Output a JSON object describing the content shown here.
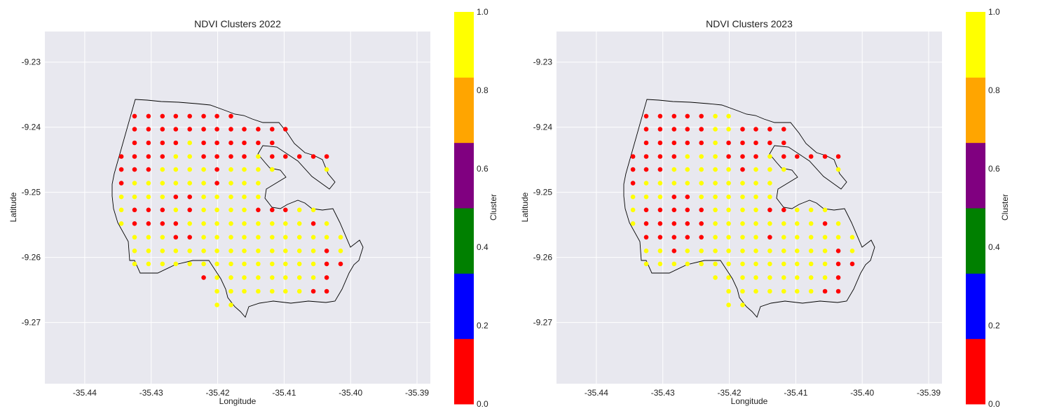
{
  "colors": {
    "background": "#e8e8ef",
    "grid": "#ffffff",
    "outline": "#000000",
    "cluster_red": "#ff0000",
    "cluster_yellow": "#ffff00"
  },
  "colorbar": {
    "label": "Cluster",
    "ticks": [
      "0.0",
      "0.2",
      "0.4",
      "0.6",
      "0.8",
      "1.0"
    ],
    "bands": [
      "#ff0000",
      "#0000ff",
      "#008000",
      "#800080",
      "#ffa500",
      "#ffff00"
    ]
  },
  "chart_data": [
    {
      "type": "scatter",
      "title": "NDVI Clusters 2022",
      "xlabel": "Longitude",
      "ylabel": "Latitude",
      "xlim": [
        -35.446,
        -35.388
      ],
      "ylim": [
        -9.2794,
        -9.2253
      ],
      "xticks": [
        "-35.44",
        "-35.43",
        "-35.42",
        "-35.41",
        "-35.40",
        "-35.39"
      ],
      "xtick_values": [
        -35.44,
        -35.43,
        -35.42,
        -35.41,
        -35.4,
        -35.39
      ],
      "yticks": [
        "-9.23",
        "-9.24",
        "-9.25",
        "-9.26",
        "-9.27"
      ],
      "ytick_values": [
        -9.23,
        -9.24,
        -9.25,
        -9.26,
        -9.27
      ],
      "grid": true,
      "x_grid": [
        -35.4345,
        -35.4325,
        -35.4304,
        -35.4283,
        -35.4263,
        -35.4242,
        -35.4221,
        -35.4201,
        -35.418,
        -35.416,
        -35.4139,
        -35.4118,
        -35.4098,
        -35.4077,
        -35.4056,
        -35.4036,
        -35.4015
      ],
      "y_grid": [
        -9.2383,
        -9.2403,
        -9.2424,
        -9.2445,
        -9.2465,
        -9.2486,
        -9.2507,
        -9.2527,
        -9.2548,
        -9.2569,
        -9.259,
        -9.261,
        -9.2631,
        -9.2652,
        -9.2673
      ],
      "point_rows": [
        ".RRRRRRRR........",
        ".RRRRRRRRRRRR....",
        ".RRRRYRRRRRR.....",
        "RRRRYYRRRRYRRRRR.",
        "RRRYYYYRYYYY...Y.",
        "RYYYYYYRYYY......",
        "YYYYRRYYYYY......",
        "YRRRYRYYYYRRRYY..",
        "YRRRRYYYYYYYYYRY.",
        ".YYYRRYYYYYYYYYYY",
        ".YYYYYYYYYYYYYYRY",
        ".YYYYYYYYYYYYYYRR",
        "......RYYYYYYYYR.",
        ".......YYYYYYYRR.",
        ".......YY........"
      ]
    },
    {
      "type": "scatter",
      "title": "NDVI Clusters 2023",
      "xlabel": "Longitude",
      "ylabel": "Latitude",
      "xlim": [
        -35.446,
        -35.388
      ],
      "ylim": [
        -9.2794,
        -9.2253
      ],
      "xticks": [
        "-35.44",
        "-35.43",
        "-35.42",
        "-35.41",
        "-35.40",
        "-35.39"
      ],
      "xtick_values": [
        -35.44,
        -35.43,
        -35.42,
        -35.41,
        -35.4,
        -35.39
      ],
      "yticks": [
        "-9.23",
        "-9.24",
        "-9.25",
        "-9.26",
        "-9.27"
      ],
      "ytick_values": [
        -9.23,
        -9.24,
        -9.25,
        -9.26,
        -9.27
      ],
      "grid": true,
      "x_grid": [
        -35.4345,
        -35.4325,
        -35.4304,
        -35.4283,
        -35.4263,
        -35.4242,
        -35.4221,
        -35.4201,
        -35.418,
        -35.416,
        -35.4139,
        -35.4118,
        -35.4098,
        -35.4077,
        -35.4056,
        -35.4036,
        -35.4015
      ],
      "y_grid": [
        -9.2383,
        -9.2403,
        -9.2424,
        -9.2445,
        -9.2465,
        -9.2486,
        -9.2507,
        -9.2527,
        -9.2548,
        -9.2569,
        -9.259,
        -9.261,
        -9.2631,
        -9.2652,
        -9.2673
      ],
      "point_rows": [
        ".RRRRRYY.........",
        ".RRRRRYYRRRR.....",
        ".RRRRRYRRRRR.....",
        "RRRRYYYRRRYRRRRR.",
        "RRRYYYYYRYYY...Y.",
        "RYYYYYYYYYY......",
        "YYYRRYYYYYY......",
        "YRRRRRYYYYRRYYY..",
        "YRRRRRYYYYYYYYRY.",
        ".RRRRRYYYYRYYYYYY",
        ".YYRYYYYYYYYYYYRY",
        ".YYYYYYYYYYYYYYRR",
        "......YYYYYYYYYR.",
        ".......YYYYYYYRR.",
        ".......YY........"
      ]
    }
  ]
}
